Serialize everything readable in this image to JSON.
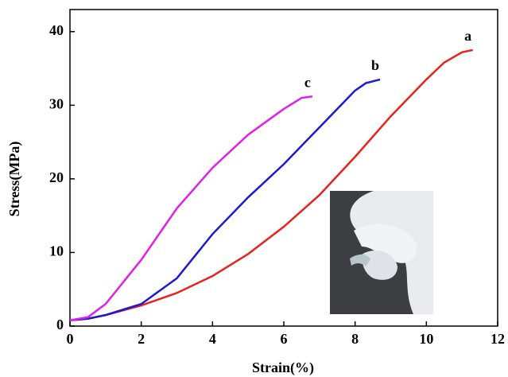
{
  "chart_data": {
    "type": "line",
    "xlabel": "Strain(%)",
    "ylabel": "Stress(MPa)",
    "xlim": [
      0,
      12
    ],
    "xticks": [
      0,
      2,
      4,
      6,
      8,
      10,
      12
    ],
    "ylim": [
      0,
      43
    ],
    "yticks": [
      0,
      10,
      20,
      30,
      40
    ],
    "series": [
      {
        "name": "a",
        "color": "#e8221c",
        "x": [
          0,
          0.5,
          1,
          2,
          3,
          4,
          5,
          6,
          7,
          8,
          9,
          10,
          10.5,
          11,
          11.3
        ],
        "values": [
          0.8,
          1,
          1.5,
          2.8,
          4.5,
          6.8,
          9.8,
          13.5,
          17.8,
          23,
          28.5,
          33.5,
          35.8,
          37.2,
          37.5
        ]
      },
      {
        "name": "b",
        "color": "#1a1ad0",
        "x": [
          0,
          0.5,
          1,
          2,
          3,
          4,
          5,
          6,
          7,
          7.5,
          8,
          8.3,
          8.7
        ],
        "values": [
          0.8,
          1,
          1.5,
          3,
          6.5,
          12.5,
          17.5,
          22,
          27,
          29.5,
          32,
          33,
          33.5
        ]
      },
      {
        "name": "c",
        "color": "#e020e8",
        "x": [
          0,
          0.5,
          1,
          2,
          3,
          4,
          5,
          6,
          6.5,
          6.8
        ],
        "values": [
          0.8,
          1.2,
          3,
          9,
          16,
          21.5,
          26,
          29.5,
          31,
          31.2
        ]
      }
    ]
  }
}
